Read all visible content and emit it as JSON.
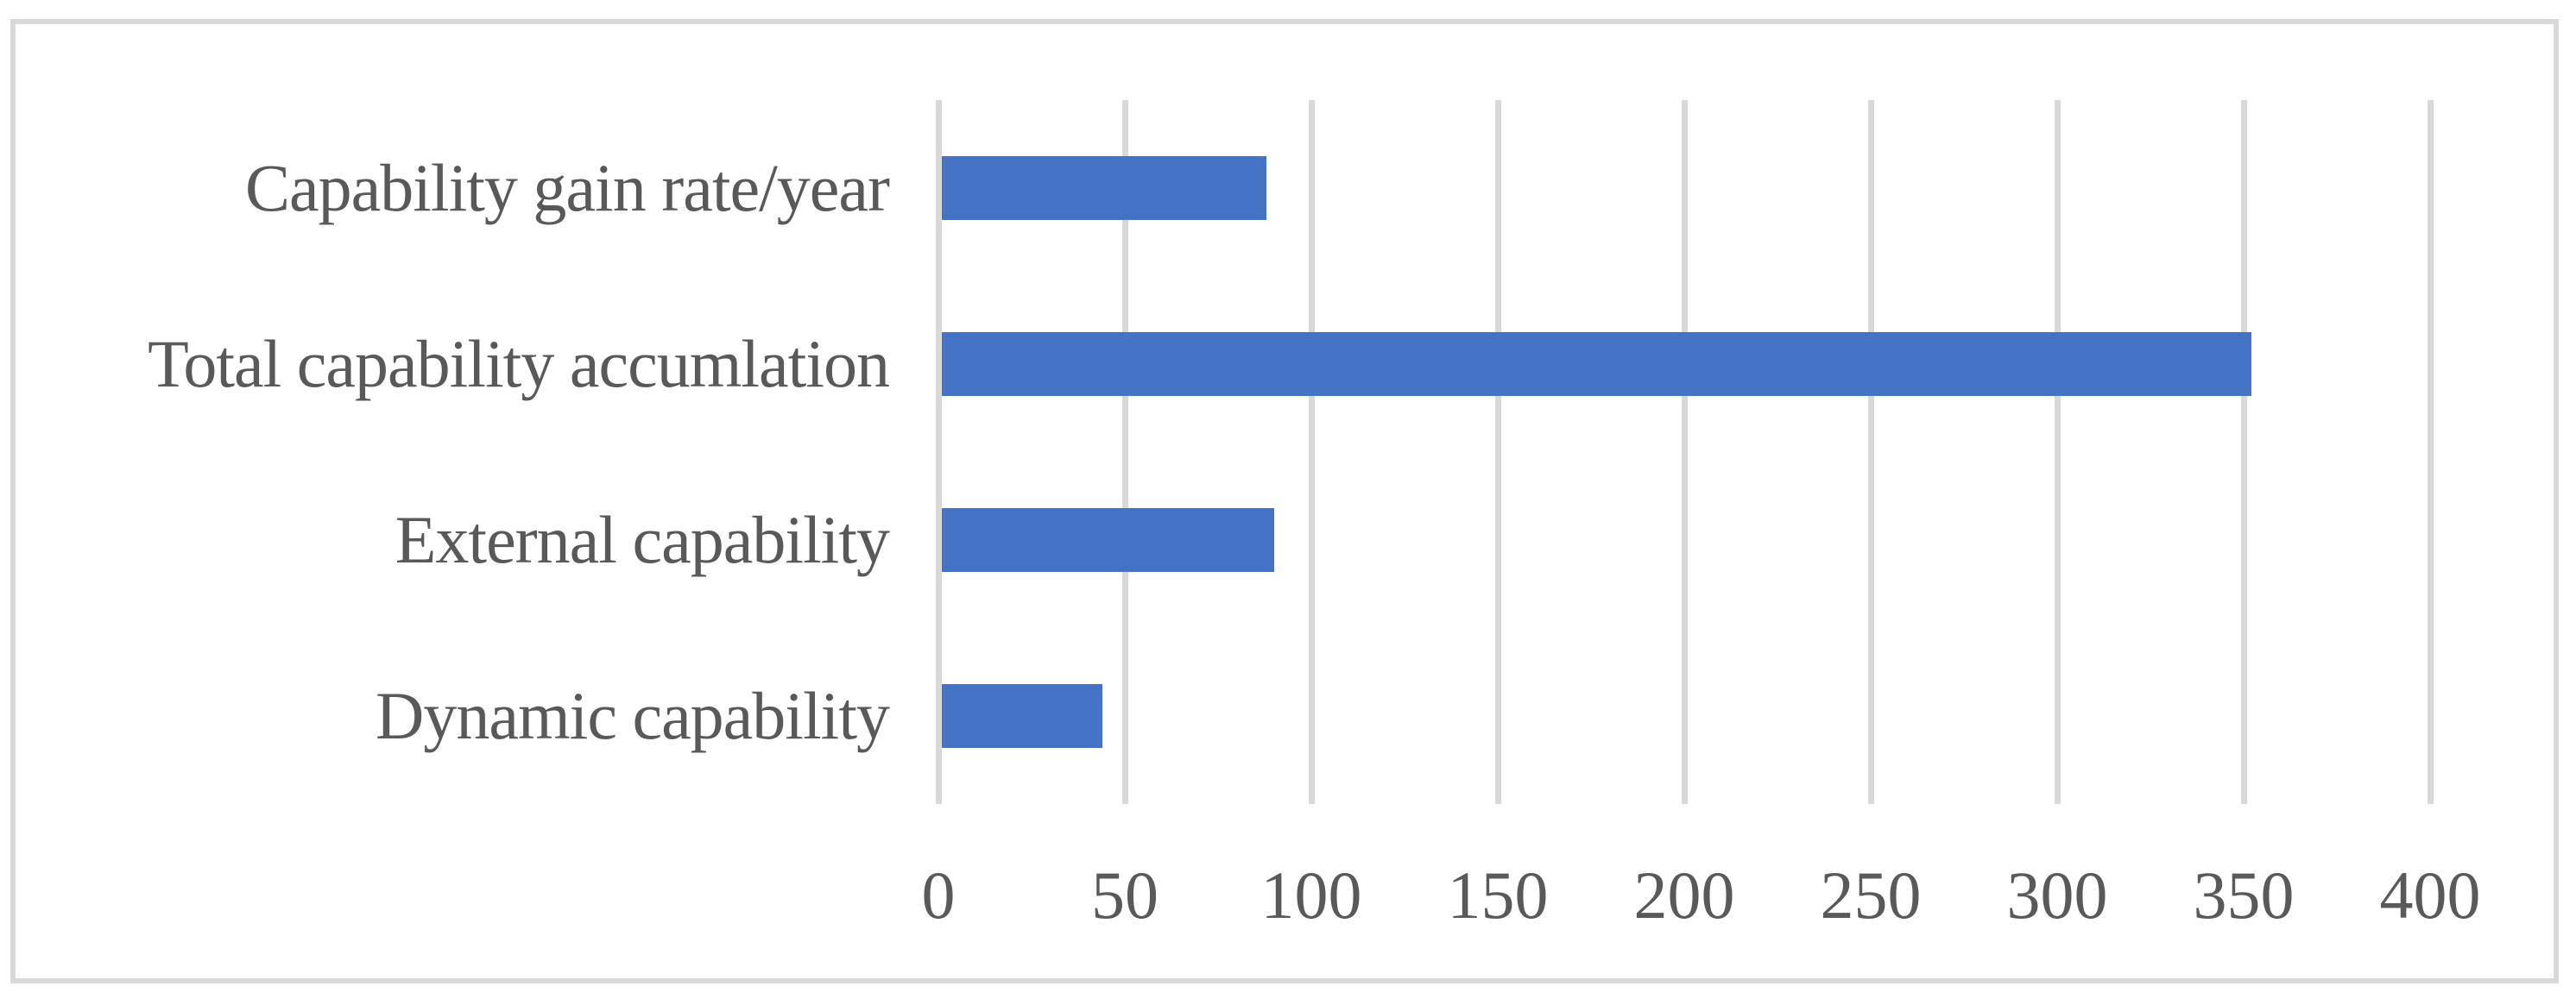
{
  "chart_data": {
    "type": "bar",
    "orientation": "horizontal",
    "categories": [
      "Capability gain rate/year",
      "Total capability accumlation",
      "External capability",
      "Dynamic capability"
    ],
    "values": [
      88,
      352,
      90,
      44
    ],
    "xlim": [
      0,
      400
    ],
    "xticks": [
      0,
      50,
      100,
      150,
      200,
      250,
      300,
      350,
      400
    ],
    "xlabel": "",
    "ylabel": "",
    "grid": true,
    "legend": false,
    "colors": {
      "bar": "#4472C4",
      "gridline": "#D9D9D9",
      "border": "#D9D9D9",
      "text": "#595959",
      "background": "#FFFFFF"
    }
  }
}
